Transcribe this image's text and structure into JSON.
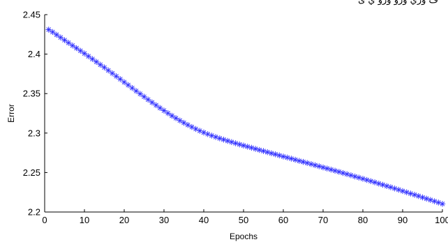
{
  "header_text": "ف ‌وري‌ ‌ورو ‌ورو ي ی",
  "chart_data": {
    "type": "scatter",
    "marker": "asterisk",
    "title": "",
    "xlabel": "Epochs",
    "ylabel": "Error",
    "xlim": [
      0,
      100
    ],
    "ylim": [
      2.2,
      2.45
    ],
    "xticks": [
      "0",
      "10",
      "20",
      "30",
      "40",
      "50",
      "60",
      "70",
      "80",
      "90",
      "100"
    ],
    "yticks": [
      "2.2",
      "2.25",
      "2.3",
      "2.35",
      "2.4",
      "2.45"
    ],
    "grid": false,
    "color": "#3333ff",
    "series": [
      {
        "x": [
          1,
          2,
          3,
          4,
          5,
          6,
          7,
          8,
          9,
          10,
          11,
          12,
          13,
          14,
          15,
          16,
          17,
          18,
          19,
          20,
          21,
          22,
          23,
          24,
          25,
          26,
          27,
          28,
          29,
          30,
          31,
          32,
          33,
          34,
          35,
          36,
          37,
          38,
          39,
          40,
          41,
          42,
          43,
          44,
          45,
          46,
          47,
          48,
          49,
          50,
          51,
          52,
          53,
          54,
          55,
          56,
          57,
          58,
          59,
          60,
          61,
          62,
          63,
          64,
          65,
          66,
          67,
          68,
          69,
          70,
          71,
          72,
          73,
          74,
          75,
          76,
          77,
          78,
          79,
          80,
          81,
          82,
          83,
          84,
          85,
          86,
          87,
          88,
          89,
          90,
          91,
          92,
          93,
          94,
          95,
          96,
          97,
          98,
          99,
          100
        ],
        "values": [
          2.431,
          2.428,
          2.4245,
          2.4211,
          2.4177,
          2.4143,
          2.4109,
          2.4076,
          2.4042,
          2.4008,
          2.3973,
          2.3938,
          2.3902,
          2.3866,
          2.3831,
          2.3794,
          2.3757,
          2.372,
          2.3683,
          2.3645,
          2.3608,
          2.3571,
          2.3533,
          2.3497,
          2.346,
          2.3424,
          2.3388,
          2.3353,
          2.3318,
          2.3285,
          2.3252,
          2.3219,
          2.3189,
          2.3159,
          2.313,
          2.3103,
          2.3077,
          2.3052,
          2.3029,
          2.3007,
          2.2987,
          2.2968,
          2.295,
          2.2933,
          2.2917,
          2.2901,
          2.2886,
          2.2871,
          2.2856,
          2.2842,
          2.2828,
          2.2814,
          2.28,
          2.2786,
          2.2772,
          2.2758,
          2.2744,
          2.2731,
          2.2717,
          2.2703,
          2.269,
          2.2676,
          2.2662,
          2.2648,
          2.2635,
          2.2621,
          2.2607,
          2.2593,
          2.2579,
          2.2565,
          2.2551,
          2.2537,
          2.2523,
          2.2509,
          2.2494,
          2.248,
          2.2465,
          2.245,
          2.2436,
          2.2421,
          2.2406,
          2.2391,
          2.2376,
          2.236,
          2.2345,
          2.2329,
          2.2314,
          2.2298,
          2.2282,
          2.2266,
          2.225,
          2.2234,
          2.2218,
          2.2202,
          2.2185,
          2.2169,
          2.2153,
          2.2136,
          2.212,
          2.2103
        ]
      }
    ]
  }
}
